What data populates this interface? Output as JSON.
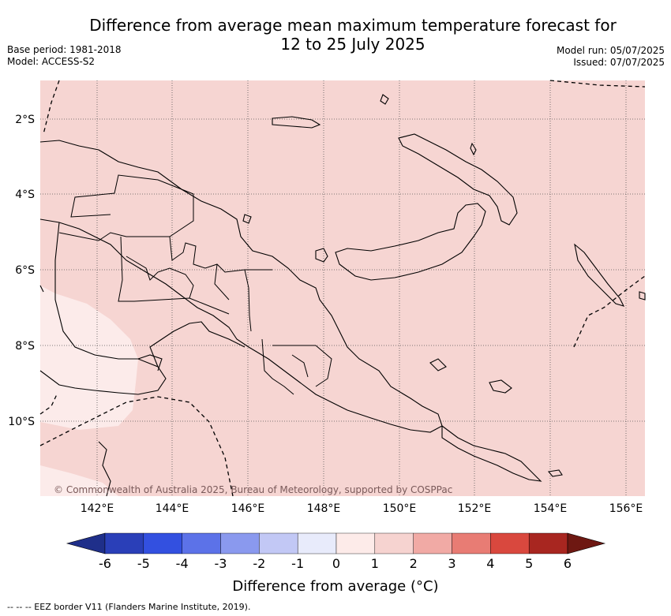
{
  "header": {
    "title_line1": "Difference from average mean maximum temperature forecast for",
    "title_line2": "12 to 25 July 2025",
    "base_period": "Base period: 1981-2018",
    "model": "Model: ACCESS-S2",
    "model_run": "Model run: 05/07/2025",
    "issued": "Issued: 07/07/2025"
  },
  "map": {
    "lat_ticks": [
      "2°S",
      "4°S",
      "6°S",
      "8°S",
      "10°S"
    ],
    "lon_ticks": [
      "142°E",
      "144°E",
      "146°E",
      "148°E",
      "150°E",
      "152°E",
      "154°E",
      "156°E"
    ],
    "copyright": "© Commonwealth of Australia 2025, Bureau of Meteorology, supported by COSPPac",
    "fill_main": "#f6d5d2",
    "fill_light": "#fcebea"
  },
  "colorbar": {
    "labels": [
      "-6",
      "-5",
      "-4",
      "-3",
      "-2",
      "-1",
      "0",
      "1",
      "2",
      "3",
      "4",
      "5",
      "6"
    ],
    "colors": [
      "#1f2f8a",
      "#2a3fb8",
      "#3350e0",
      "#5c72e8",
      "#8a99ee",
      "#c2c8f5",
      "#e8ebfb",
      "#fdebe9",
      "#f6d3d0",
      "#f1aaa5",
      "#e87c74",
      "#d9483e",
      "#a82620",
      "#6e1812"
    ],
    "title": "Difference from average (°C)"
  },
  "footnote": "-- -- -- EEZ border V11 (Flanders Marine Institute, 2019)."
}
